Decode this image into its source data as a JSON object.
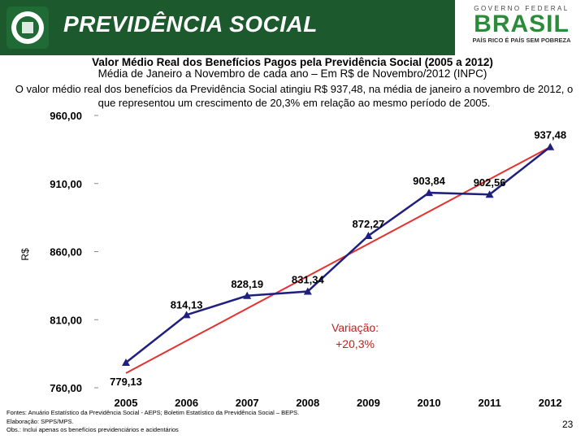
{
  "header": {
    "brand": "PREVIDÊNCIA SOCIAL",
    "gov_line": "GOVERNO FEDERAL",
    "country": "BRASIL",
    "slogan": "PAÍS RICO É PAÍS SEM POBREZA",
    "band_color": "#1c5a2e"
  },
  "title": "Valor Médio Real dos Benefícios Pagos pela Previdência Social (2005 a 2012)",
  "subtitle": "Média de Janeiro a Novembro de cada ano – Em R$ de Novembro/2012 (INPC)",
  "description": "O valor médio real dos benefícios da Previdência Social atingiu R$ 937,48, na média de janeiro a novembro de 2012, o que representou um crescimento de 20,3% em relação ao mesmo período de 2005.",
  "chart_data": {
    "type": "line",
    "categories": [
      "2005",
      "2006",
      "2007",
      "2008",
      "2009",
      "2010",
      "2011",
      "2012"
    ],
    "series": [
      {
        "name": "Valor médio real",
        "values": [
          779.13,
          814.13,
          828.19,
          831.34,
          872.27,
          903.84,
          902.56,
          937.48
        ],
        "labels": [
          "779,13",
          "814,13",
          "828,19",
          "831,34",
          "872,27",
          "903,84",
          "902,56",
          "937,48"
        ],
        "color": "#1f1f80"
      }
    ],
    "ylabel": "R$",
    "xlabel": "",
    "ylim": [
      760,
      960
    ],
    "yticks": [
      760,
      810,
      860,
      910,
      960
    ],
    "ytick_labels": [
      "760,00",
      "810,00",
      "860,00",
      "910,00",
      "960,00"
    ],
    "trend": {
      "from": "2005",
      "to": "2012",
      "color": "#e53030"
    },
    "annotation": {
      "line1": "Variação:",
      "line2": "+20,3%",
      "color": "#cc1a1a"
    }
  },
  "footer": {
    "line1": "Fontes: Anuário Estatístico da Previdência Social - AEPS; Boletim Estatístico da Previdência Social – BEPS.",
    "line2": "Elaboração: SPPS/MPS.",
    "line3": "Obs.: Inclui apenas os benefícios previdenciários e acidentários"
  },
  "page_number": "23"
}
